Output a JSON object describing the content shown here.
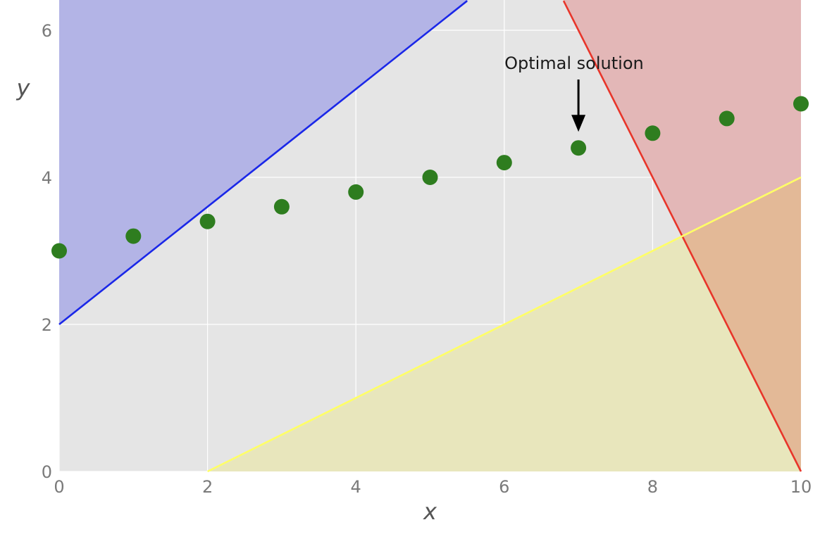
{
  "chart_data": {
    "type": "scatter",
    "xlabel": "x",
    "ylabel": "y",
    "xlim": [
      0,
      10
    ],
    "ylim": [
      0,
      6.5
    ],
    "grid": true,
    "x_ticks": [
      0,
      2,
      4,
      6,
      8,
      10
    ],
    "y_ticks": [
      0,
      2,
      4,
      6
    ],
    "colors": {
      "background": "#e5e5e5",
      "grid": "#ffffff",
      "points": "#2e7d1f",
      "blue_line": "#1a27e8",
      "blue_fill": "#b3b4e6",
      "red_line": "#e8352a",
      "red_fill": "#e3b7b7",
      "yellow_line": "#ffff66",
      "yellow_fill": "#e8e6bc",
      "overlap_fill": "#e3b997",
      "tick_text": "#7a7a7a",
      "axis_text": "#555555"
    },
    "points": {
      "x": [
        0,
        1,
        2,
        3,
        4,
        5,
        6,
        7,
        8,
        9,
        10
      ],
      "y": [
        3.0,
        3.2,
        3.4,
        3.6,
        3.8,
        4.0,
        4.2,
        4.4,
        4.6,
        4.8,
        5.0
      ]
    },
    "constraints": [
      {
        "name": "",
        "color": "blue",
        "x": [
          0,
          5.5
        ],
        "y": [
          2,
          6.4
        ]
      },
      {
        "name": "",
        "color": "red",
        "x": [
          6.8,
          10
        ],
        "y": [
          6.4,
          0
        ]
      },
      {
        "name": "",
        "color": "yellow",
        "x": [
          2,
          10
        ],
        "y": [
          0,
          4
        ]
      }
    ],
    "annotation": {
      "text": "Optimal solution",
      "x": 7,
      "y": 4.6,
      "text_x": 7,
      "text_y": 5.55
    }
  }
}
